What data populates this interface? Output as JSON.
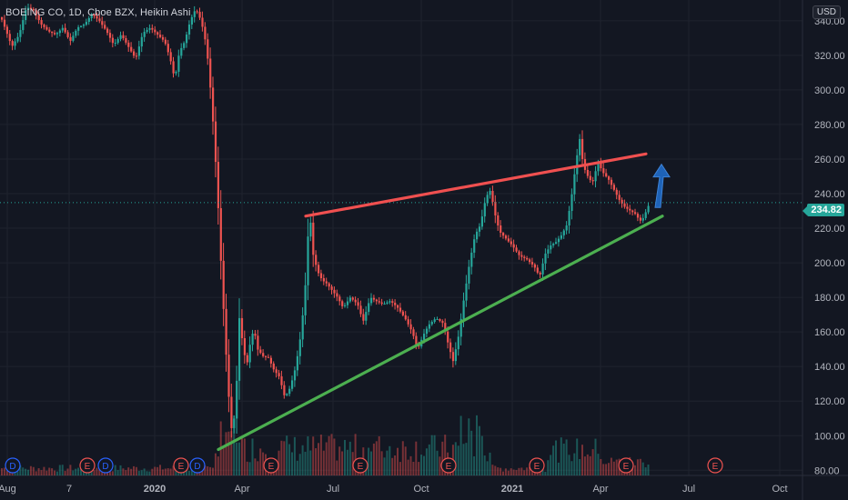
{
  "header": {
    "title": "BOEING CO, 1D, Cboe BZX, Heikin Ashi",
    "currency": "USD",
    "last_price": "234.82"
  },
  "colors": {
    "background": "#131722",
    "up": "#26a69a",
    "down": "#ef5350",
    "resistance": "#f05050",
    "support": "#4caf50",
    "arrow": "#1e63b8",
    "grid": "#1f232e"
  },
  "chart_data": {
    "type": "candlestick",
    "ylim": [
      77,
      352
    ],
    "y_ticks": [
      80,
      100,
      120,
      140,
      160,
      180,
      200,
      220,
      240,
      260,
      280,
      300,
      320,
      340
    ],
    "x_axis_labels": [
      "Aug",
      "7",
      "2020",
      "Apr",
      "Jul",
      "Oct",
      "2021",
      "Apr",
      "Jul",
      "Oct"
    ],
    "x_axis_bold": [
      "2020",
      "2021"
    ],
    "last_price": 234.82,
    "price_anchors": [
      [
        0,
        342
      ],
      [
        5,
        335
      ],
      [
        12,
        325
      ],
      [
        20,
        332
      ],
      [
        28,
        348
      ],
      [
        36,
        346
      ],
      [
        44,
        338
      ],
      [
        52,
        334
      ],
      [
        60,
        332
      ],
      [
        68,
        336
      ],
      [
        76,
        328
      ],
      [
        84,
        336
      ],
      [
        92,
        338
      ],
      [
        100,
        344
      ],
      [
        108,
        340
      ],
      [
        116,
        334
      ],
      [
        124,
        326
      ],
      [
        132,
        332
      ],
      [
        140,
        325
      ],
      [
        148,
        318
      ],
      [
        156,
        333
      ],
      [
        164,
        336
      ],
      [
        172,
        332
      ],
      [
        180,
        328
      ],
      [
        186,
        318
      ],
      [
        191,
        306
      ],
      [
        196,
        322
      ],
      [
        202,
        328
      ],
      [
        208,
        340
      ],
      [
        214,
        347
      ],
      [
        220,
        340
      ],
      [
        226,
        325
      ],
      [
        230,
        302
      ],
      [
        234,
        275
      ],
      [
        238,
        240
      ],
      [
        242,
        198
      ],
      [
        246,
        160
      ],
      [
        250,
        125
      ],
      [
        254,
        100
      ],
      [
        258,
        118
      ],
      [
        262,
        168
      ],
      [
        266,
        152
      ],
      [
        270,
        140
      ],
      [
        274,
        154
      ],
      [
        278,
        162
      ],
      [
        282,
        150
      ],
      [
        288,
        146
      ],
      [
        294,
        145
      ],
      [
        300,
        138
      ],
      [
        306,
        134
      ],
      [
        312,
        122
      ],
      [
        318,
        128
      ],
      [
        324,
        140
      ],
      [
        330,
        160
      ],
      [
        335,
        190
      ],
      [
        339,
        232
      ],
      [
        343,
        205
      ],
      [
        348,
        195
      ],
      [
        353,
        190
      ],
      [
        358,
        188
      ],
      [
        364,
        184
      ],
      [
        370,
        180
      ],
      [
        376,
        174
      ],
      [
        384,
        180
      ],
      [
        392,
        176
      ],
      [
        398,
        166
      ],
      [
        406,
        180
      ],
      [
        412,
        178
      ],
      [
        420,
        176
      ],
      [
        428,
        178
      ],
      [
        436,
        174
      ],
      [
        444,
        168
      ],
      [
        452,
        160
      ],
      [
        458,
        150
      ],
      [
        464,
        158
      ],
      [
        470,
        164
      ],
      [
        478,
        168
      ],
      [
        486,
        165
      ],
      [
        492,
        152
      ],
      [
        497,
        143
      ],
      [
        503,
        158
      ],
      [
        509,
        180
      ],
      [
        515,
        200
      ],
      [
        521,
        216
      ],
      [
        527,
        222
      ],
      [
        533,
        238
      ],
      [
        538,
        242
      ],
      [
        543,
        228
      ],
      [
        548,
        218
      ],
      [
        555,
        214
      ],
      [
        562,
        210
      ],
      [
        570,
        204
      ],
      [
        578,
        202
      ],
      [
        586,
        198
      ],
      [
        592,
        192
      ],
      [
        598,
        205
      ],
      [
        604,
        210
      ],
      [
        610,
        212
      ],
      [
        616,
        216
      ],
      [
        622,
        222
      ],
      [
        627,
        238
      ],
      [
        632,
        258
      ],
      [
        636,
        272
      ],
      [
        640,
        256
      ],
      [
        645,
        250
      ],
      [
        650,
        246
      ],
      [
        656,
        258
      ],
      [
        662,
        252
      ],
      [
        668,
        248
      ],
      [
        674,
        242
      ],
      [
        680,
        236
      ],
      [
        686,
        232
      ],
      [
        692,
        230
      ],
      [
        698,
        228
      ],
      [
        702,
        224
      ],
      [
        706,
        226
      ],
      [
        710,
        231
      ],
      [
        714,
        236
      ]
    ],
    "trendlines": [
      {
        "name": "resistance",
        "from": {
          "x": 336,
          "price": 227
        },
        "to": {
          "x": 710,
          "price": 263
        }
      },
      {
        "name": "support",
        "from": {
          "x": 240,
          "price": 92
        },
        "to": {
          "x": 728,
          "price": 227
        }
      }
    ],
    "projection_arrow": {
      "x": 724,
      "from_price": 232,
      "to_price": 257
    },
    "event_markers": [
      {
        "x": 14,
        "label": "D",
        "kind": "dividend"
      },
      {
        "x": 96,
        "label": "E",
        "kind": "earnings"
      },
      {
        "x": 116,
        "label": "D",
        "kind": "dividend"
      },
      {
        "x": 199,
        "label": "E",
        "kind": "earnings"
      },
      {
        "x": 217,
        "label": "D",
        "kind": "dividend"
      },
      {
        "x": 298,
        "label": "E",
        "kind": "earnings"
      },
      {
        "x": 396,
        "label": "E",
        "kind": "earnings"
      },
      {
        "x": 493,
        "label": "E",
        "kind": "earnings"
      },
      {
        "x": 590,
        "label": "E",
        "kind": "earnings"
      },
      {
        "x": 688,
        "label": "E",
        "kind": "earnings"
      },
      {
        "x": 786,
        "label": "E",
        "kind": "earnings"
      }
    ]
  }
}
